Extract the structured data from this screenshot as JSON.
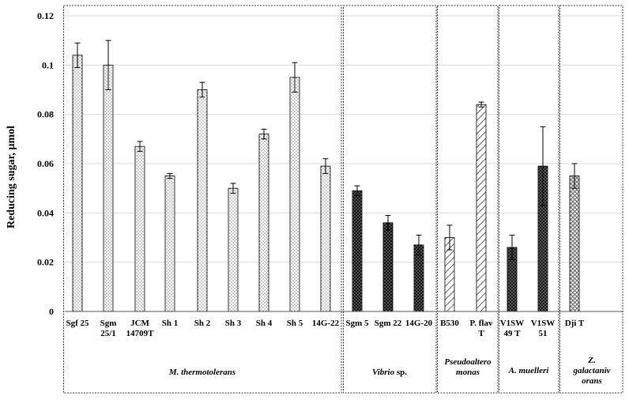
{
  "chart_data": {
    "type": "bar",
    "ylabel": "Reducing sugar, µmol",
    "ylim": [
      0,
      0.12
    ],
    "yticks": [
      "0",
      "0.02",
      "0.04",
      "0.06",
      "0.08",
      "0.1",
      "0.12"
    ],
    "grid": true,
    "bars": [
      {
        "label": [
          "Sgf 25"
        ],
        "value": 0.104,
        "error": 0.005,
        "pattern": "dots-light",
        "group": 0
      },
      {
        "label": [
          "Sgm",
          "25/1"
        ],
        "value": 0.1,
        "error": 0.01,
        "pattern": "dots-light",
        "group": 0
      },
      {
        "label": [
          "JCM",
          "14709T"
        ],
        "value": 0.067,
        "error": 0.002,
        "pattern": "dots-light",
        "group": 0
      },
      {
        "label": [
          "Sh 1"
        ],
        "value": 0.055,
        "error": 0.001,
        "pattern": "dots-light",
        "group": 0
      },
      {
        "label": [
          "Sh 2"
        ],
        "value": 0.09,
        "error": 0.003,
        "pattern": "dots-light",
        "group": 0
      },
      {
        "label": [
          "Sh 3"
        ],
        "value": 0.05,
        "error": 0.002,
        "pattern": "dots-light",
        "group": 0
      },
      {
        "label": [
          "Sh 4"
        ],
        "value": 0.072,
        "error": 0.002,
        "pattern": "dots-light",
        "group": 0
      },
      {
        "label": [
          "Sh 5"
        ],
        "value": 0.095,
        "error": 0.006,
        "pattern": "dots-light",
        "group": 0
      },
      {
        "label": [
          "14G-22"
        ],
        "value": 0.059,
        "error": 0.003,
        "pattern": "dots-light",
        "group": 0
      },
      {
        "label": [
          "Sgm 5"
        ],
        "value": 0.049,
        "error": 0.002,
        "pattern": "dark-dots",
        "group": 1
      },
      {
        "label": [
          "Sgm 22"
        ],
        "value": 0.036,
        "error": 0.003,
        "pattern": "dark-dots",
        "group": 1
      },
      {
        "label": [
          "14G-20"
        ],
        "value": 0.027,
        "error": 0.004,
        "pattern": "dark-dots",
        "group": 1
      },
      {
        "label": [
          "B530"
        ],
        "value": 0.03,
        "error": 0.005,
        "pattern": "diag",
        "group": 2
      },
      {
        "label": [
          "P. flav",
          "T"
        ],
        "value": 0.084,
        "error": 0.001,
        "pattern": "diag",
        "group": 2
      },
      {
        "label": [
          "V1SW",
          "49 T"
        ],
        "value": 0.026,
        "error": 0.005,
        "pattern": "cross",
        "group": 3
      },
      {
        "label": [
          "V1SW",
          "51"
        ],
        "value": 0.059,
        "error": 0.016,
        "pattern": "cross",
        "group": 3
      },
      {
        "label": [
          "Dji T"
        ],
        "value": 0.055,
        "error": 0.005,
        "pattern": "cross-light",
        "group": 4
      }
    ],
    "groups": [
      {
        "label": [
          "M. thermotolerans"
        ]
      },
      {
        "label": [
          "Vibrio",
          " sp."
        ],
        "italic_first_only": true
      },
      {
        "label": [
          "Pseudoaltero",
          "monas"
        ]
      },
      {
        "label": [
          "A. muelleri"
        ]
      },
      {
        "label": [
          "Z.",
          "galactaniv",
          "orans"
        ]
      }
    ],
    "colors": {
      "bar_stroke": "#000000",
      "dark_fill": "#111111",
      "grid": "#d9d9d9"
    }
  }
}
